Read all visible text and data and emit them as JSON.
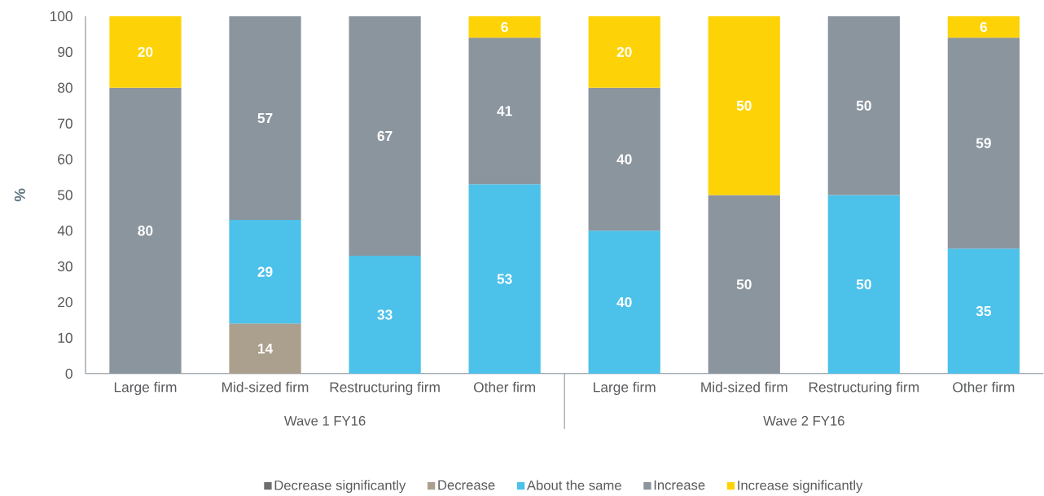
{
  "chart_data": {
    "type": "bar",
    "stacked": true,
    "ylabel": "%",
    "categories": [
      "Large firm",
      "Mid-sized firm",
      "Restructuring firm",
      "Other firm",
      "Large firm",
      "Mid-sized firm",
      "Restructuring firm",
      "Other firm"
    ],
    "annotations": [
      "Wave 1 FY16",
      "Wave 2 FY16"
    ],
    "series": [
      {
        "name": "Decrease significantly",
        "color": "#6d6e70",
        "values": [
          null,
          null,
          null,
          null,
          null,
          null,
          null,
          null
        ]
      },
      {
        "name": "Decrease",
        "color": "#ab9f8e",
        "values": [
          null,
          14,
          null,
          null,
          null,
          null,
          null,
          null
        ]
      },
      {
        "name": "About the same",
        "color": "#4cc1ea",
        "values": [
          null,
          29,
          33,
          53,
          40,
          null,
          50,
          35
        ]
      },
      {
        "name": "Increase",
        "color": "#8b959e",
        "values": [
          80,
          57,
          67,
          41,
          40,
          50,
          50,
          59
        ]
      },
      {
        "name": "Increase significantly",
        "color": "#fdd307",
        "values": [
          20,
          null,
          null,
          6,
          20,
          50,
          null,
          6
        ]
      }
    ],
    "ylim": [
      0,
      100
    ],
    "yticks": [
      0,
      10,
      20,
      30,
      40,
      50,
      60,
      70,
      80,
      90,
      100
    ],
    "data_labels": true,
    "legend": "bottom",
    "grid": false
  }
}
